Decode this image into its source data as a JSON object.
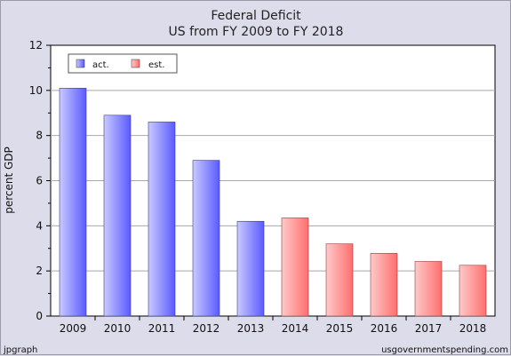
{
  "chart_data": {
    "type": "bar",
    "title": "Federal Deficit",
    "subtitle": "US from FY 2009 to FY 2018",
    "ylabel": "percent GDP",
    "xlabel": "",
    "ylim": [
      0,
      12
    ],
    "yticks": [
      0,
      2,
      4,
      6,
      8,
      10,
      12
    ],
    "grid": true,
    "legend_position": "top-left",
    "categories": [
      "2009",
      "2010",
      "2011",
      "2012",
      "2013",
      "2014",
      "2015",
      "2016",
      "2017",
      "2018"
    ],
    "values": [
      10.1,
      8.9,
      8.6,
      6.9,
      4.2,
      4.35,
      3.2,
      2.78,
      2.42,
      2.25
    ],
    "series_kind": [
      "act",
      "act",
      "act",
      "act",
      "act",
      "est",
      "est",
      "est",
      "est",
      "est"
    ],
    "legend": [
      {
        "key": "act",
        "label": "act.",
        "color": "#7b7bff"
      },
      {
        "key": "est",
        "label": "est.",
        "color": "#ff8a8a"
      }
    ]
  },
  "footer": {
    "left": "jpgraph",
    "right": "usgovernmentspending.com"
  }
}
